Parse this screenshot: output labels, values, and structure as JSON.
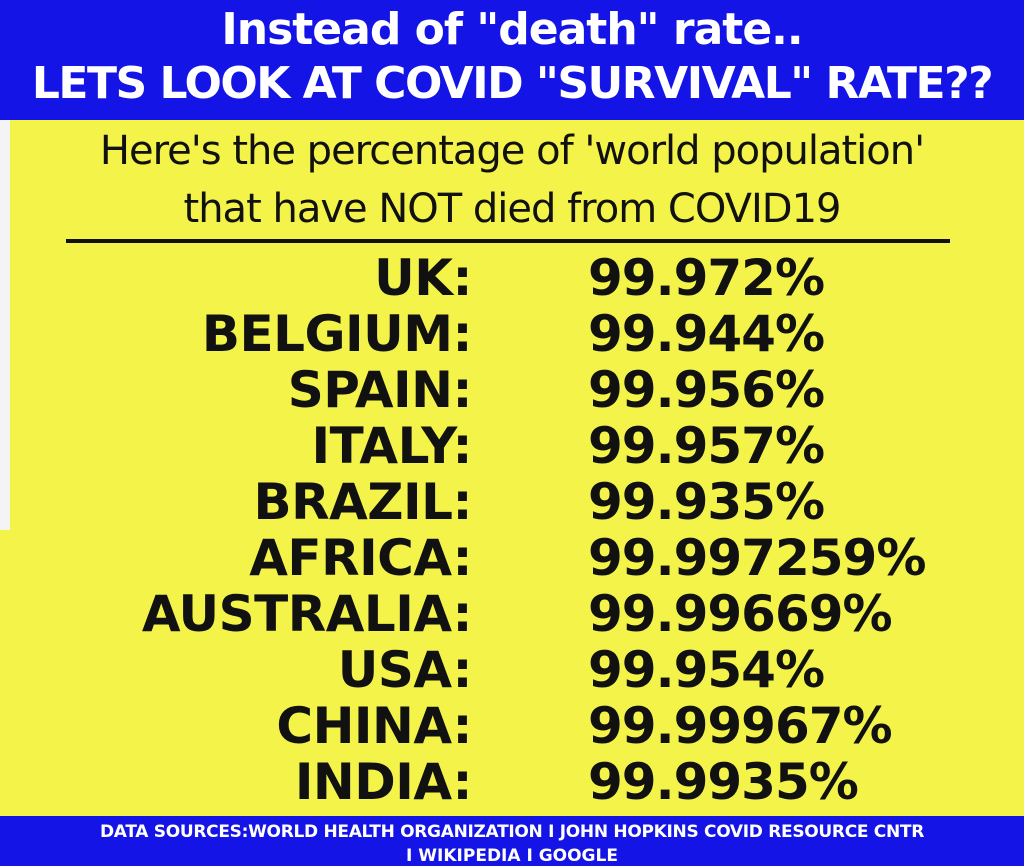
{
  "header": {
    "line1": "Instead of \"death\" rate..",
    "line2": "LETS LOOK AT COVID \"SURVIVAL\" RATE??"
  },
  "subtitle": {
    "line1": "Here's the percentage of 'world population'",
    "line2": "that have NOT died from COVID19"
  },
  "rows": [
    {
      "country": "UK:",
      "pct": "99.972%"
    },
    {
      "country": "BELGIUM:",
      "pct": "99.944%"
    },
    {
      "country": "SPAIN:",
      "pct": "99.956%"
    },
    {
      "country": "ITALY:",
      "pct": "99.957%"
    },
    {
      "country": "BRAZIL:",
      "pct": "99.935%"
    },
    {
      "country": "AFRICA:",
      "pct": "99.997259%"
    },
    {
      "country": "AUSTRALIA:",
      "pct": "99.99669%"
    },
    {
      "country": "USA:",
      "pct": "99.954%"
    },
    {
      "country": "CHINA:",
      "pct": "99.99967%"
    },
    {
      "country": "INDIA:",
      "pct": "99.9935%"
    }
  ],
  "footer": {
    "line1": "DATA SOURCES:WORLD HEALTH ORGANIZATION I JOHN HOPKINS COVID RESOURCE CNTR",
    "line2": "I WIKIPEDIA I GOOGLE"
  },
  "colors": {
    "header_bg": "#1414e6",
    "panel_bg": "#f3f34a",
    "text": "#111111"
  }
}
